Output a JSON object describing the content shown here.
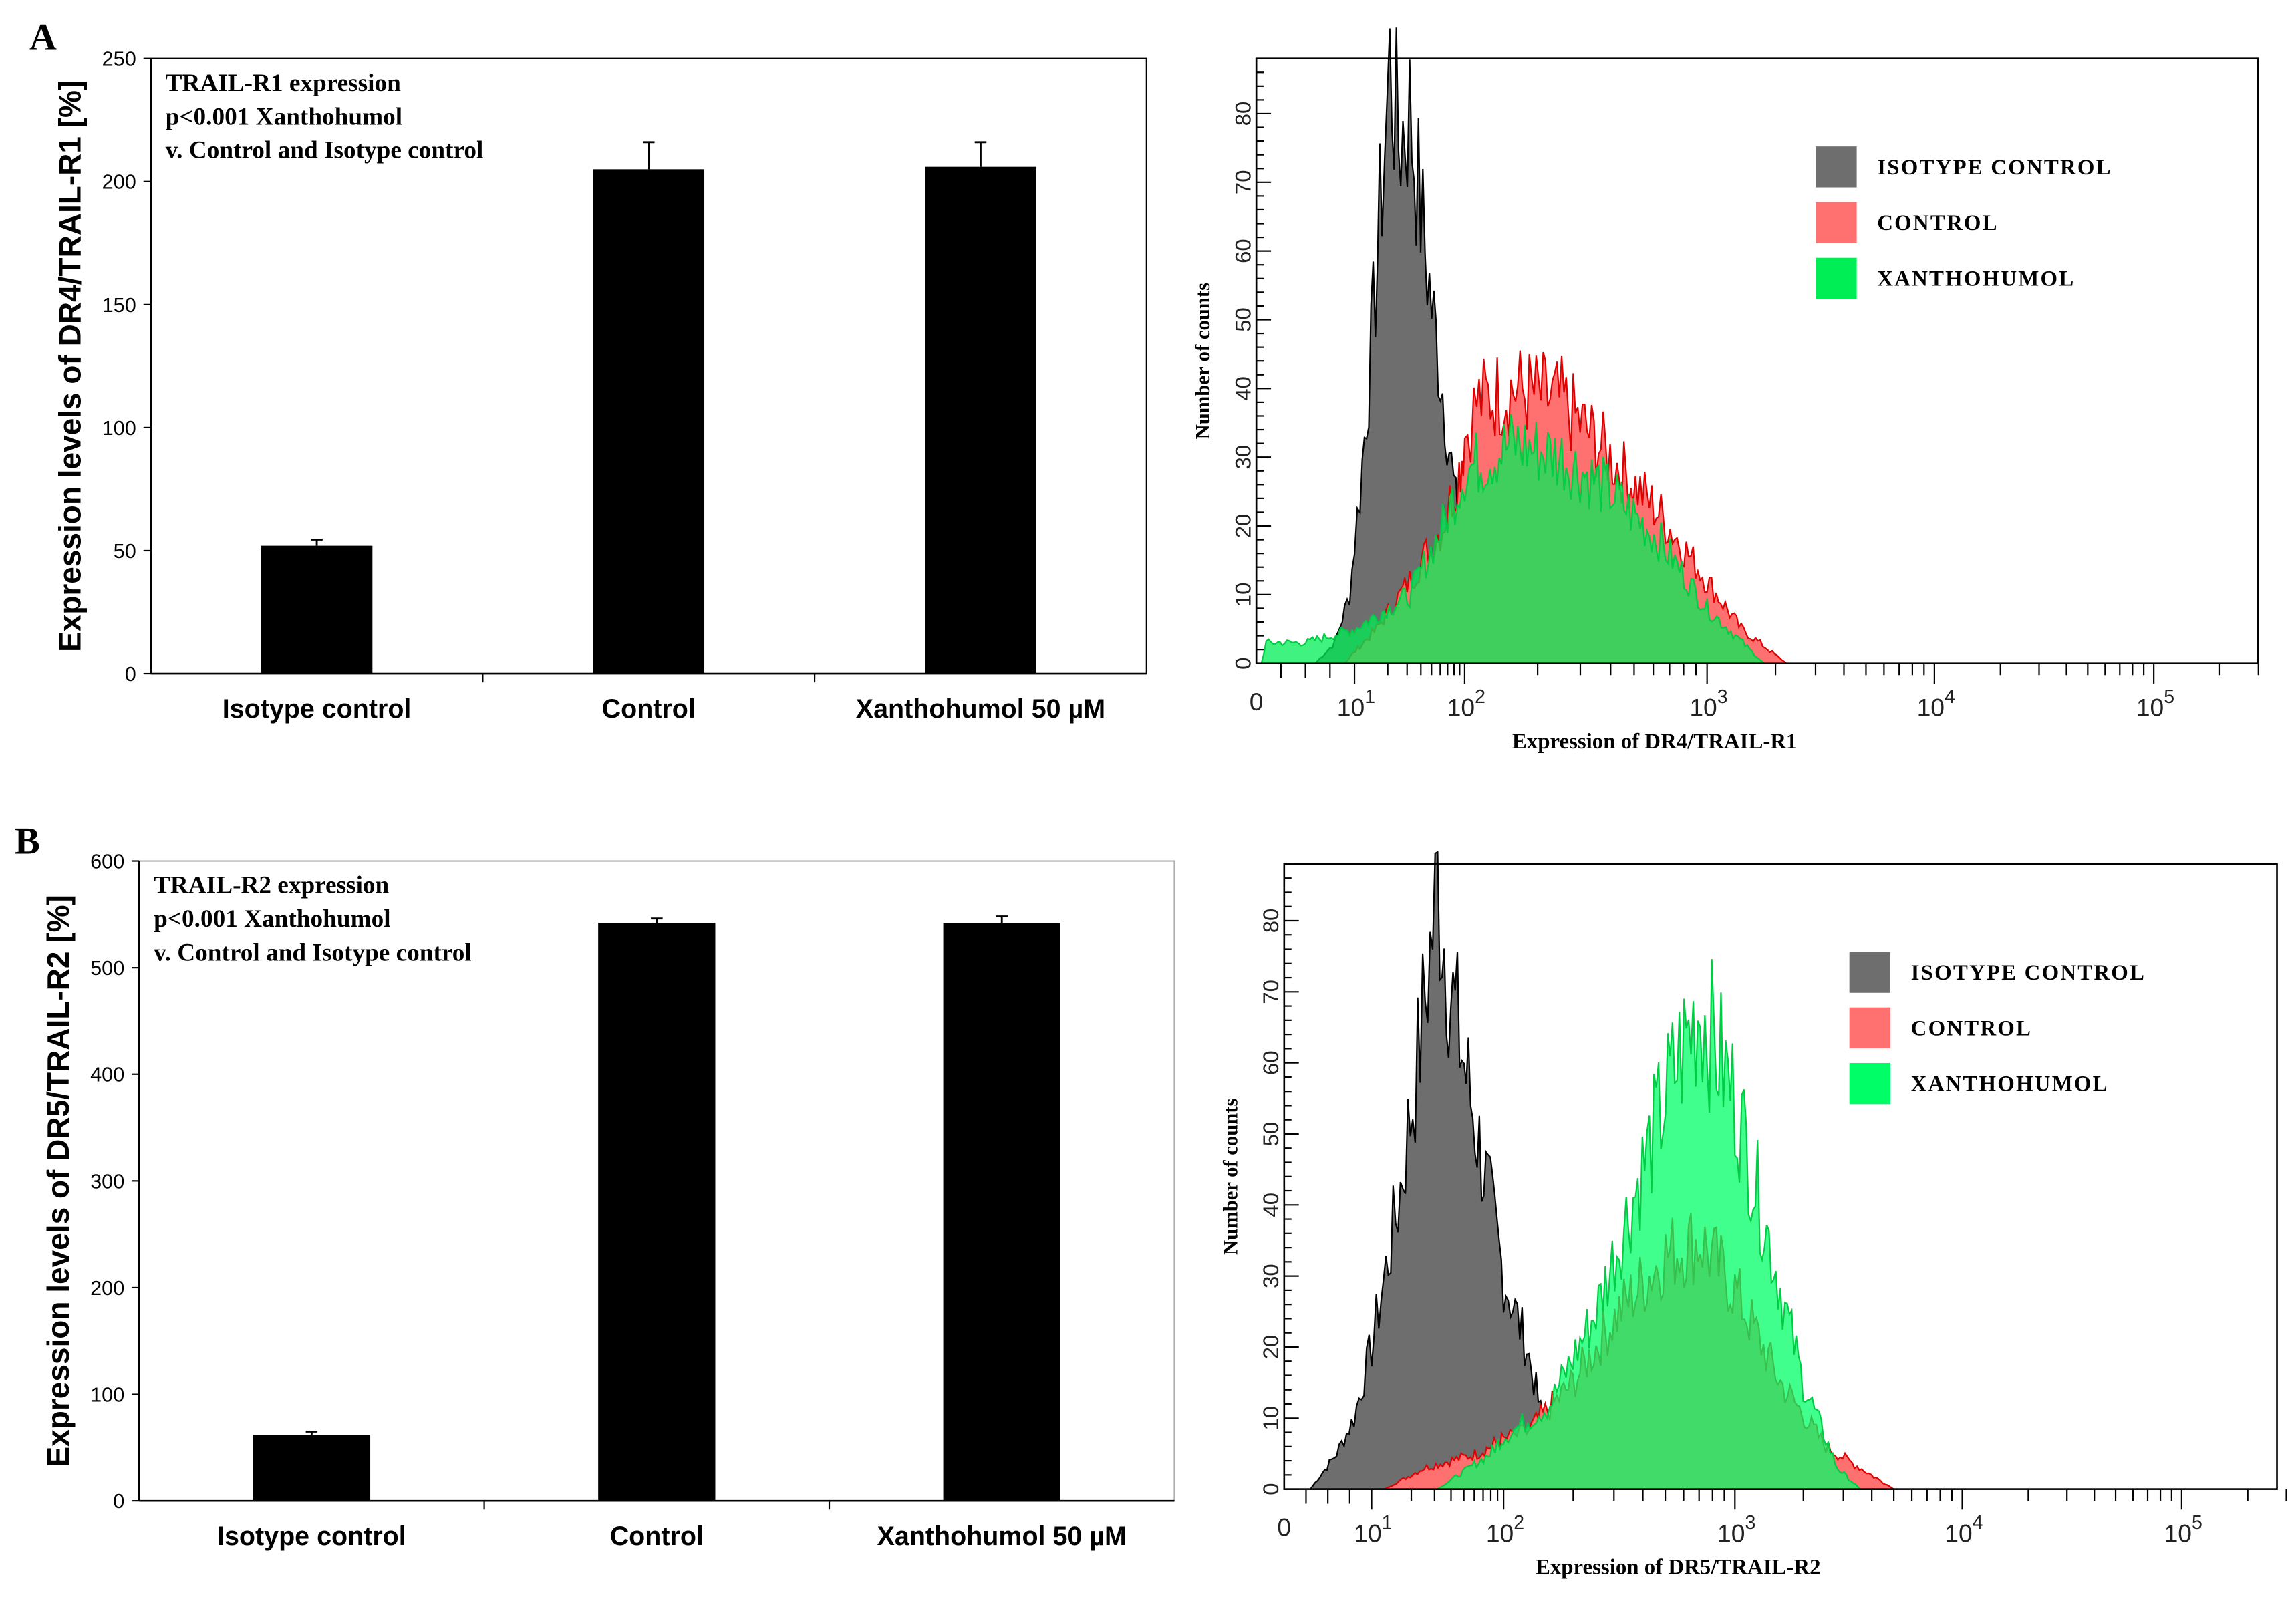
{
  "panels": {
    "a_label": "A",
    "b_label": "B"
  },
  "chart_data": [
    {
      "id": "A-bar",
      "type": "bar",
      "title": "",
      "annotation": [
        "TRAIL-R1 expression",
        "p<0.001 Xanthohumol",
        "v. Control and Isotype control"
      ],
      "ylabel": "Expression levels of DR4/TRAIL-R1 [%]",
      "xlabel": "",
      "categories": [
        "Isotype control",
        "Control",
        "Xanthohumol 50 µM"
      ],
      "values": [
        52,
        205,
        206
      ],
      "errors": [
        2.5,
        11,
        10
      ],
      "ylim": [
        0,
        250
      ],
      "yticks": [
        0,
        50,
        100,
        150,
        200,
        250
      ],
      "bar_color": "#000000"
    },
    {
      "id": "A-hist",
      "type": "area",
      "xlabel": "Expression of DR4/TRAIL-R1",
      "ylabel": "Number of counts",
      "xscale": "log (biexponential)",
      "xticks": [
        {
          "d": 0,
          "label": "0"
        },
        {
          "d": 1,
          "base": "10",
          "exp": "1"
        },
        {
          "d": 2,
          "base": "10",
          "exp": "2"
        },
        {
          "d": 3,
          "base": "10",
          "exp": "3"
        },
        {
          "d": 4,
          "base": "10",
          "exp": "4"
        },
        {
          "d": 5,
          "base": "10",
          "exp": "5"
        }
      ],
      "yticks": [
        0,
        10,
        20,
        30,
        40,
        50,
        60,
        70,
        80
      ],
      "ylim": [
        0,
        88
      ],
      "legend_position": "top-right",
      "series": [
        {
          "name": "ISOTYPE CONTROL",
          "color": "#6e6e6e",
          "stroke": "#000000",
          "points": [
            [
              0.6,
              0
            ],
            [
              0.8,
              3
            ],
            [
              0.95,
              10
            ],
            [
              1.05,
              25
            ],
            [
              1.15,
              45
            ],
            [
              1.25,
              70
            ],
            [
              1.32,
              87
            ],
            [
              1.4,
              76
            ],
            [
              1.5,
              80
            ],
            [
              1.6,
              66
            ],
            [
              1.7,
              52
            ],
            [
              1.8,
              40
            ],
            [
              1.9,
              26
            ],
            [
              2.0,
              12
            ],
            [
              2.1,
              3
            ],
            [
              2.2,
              0
            ]
          ]
        },
        {
          "name": "CONTROL",
          "color": "#ff7070",
          "stroke": "#e00000",
          "points": [
            [
              0.9,
              0
            ],
            [
              1.2,
              5
            ],
            [
              1.5,
              12
            ],
            [
              1.8,
              20
            ],
            [
              1.95,
              28
            ],
            [
              2.05,
              38
            ],
            [
              2.2,
              40
            ],
            [
              2.4,
              38
            ],
            [
              2.6,
              30
            ],
            [
              2.8,
              22
            ],
            [
              3.0,
              12
            ],
            [
              3.15,
              5
            ],
            [
              3.35,
              0
            ]
          ]
        },
        {
          "name": "XANTHOHUMOL",
          "color": "#00ee55",
          "stroke": "#00cc44",
          "points": [
            [
              0.05,
              0
            ],
            [
              0.1,
              3
            ],
            [
              0.5,
              3
            ],
            [
              1.0,
              5
            ],
            [
              1.5,
              10
            ],
            [
              1.8,
              20
            ],
            [
              2.0,
              28
            ],
            [
              2.2,
              32
            ],
            [
              2.4,
              30
            ],
            [
              2.6,
              25
            ],
            [
              2.8,
              18
            ],
            [
              3.0,
              8
            ],
            [
              3.25,
              0
            ]
          ]
        }
      ]
    },
    {
      "id": "B-bar",
      "type": "bar",
      "title": "",
      "annotation": [
        "TRAIL-R2 expression",
        "p<0.001 Xanthohumol",
        " v. Control and Isotype control"
      ],
      "ylabel": "Expression levels of DR5/TRAIL-R2 [%]",
      "xlabel": "",
      "categories": [
        "Isotype control",
        "Control",
        "Xanthohumol 50 µM"
      ],
      "values": [
        62,
        542,
        542
      ],
      "errors": [
        3,
        4,
        6
      ],
      "ylim": [
        0,
        600
      ],
      "yticks": [
        0,
        100,
        200,
        300,
        400,
        500,
        600
      ],
      "bar_color": "#000000"
    },
    {
      "id": "B-hist",
      "type": "area",
      "xlabel": "Expression of DR5/TRAIL-R2",
      "ylabel": "Number of counts",
      "xscale": "log (biexponential)",
      "xticks": [
        {
          "d": 0,
          "label": "0"
        },
        {
          "d": 1,
          "base": "10",
          "exp": "1"
        },
        {
          "d": 2,
          "base": "10",
          "exp": "2"
        },
        {
          "d": 3,
          "base": "10",
          "exp": "3"
        },
        {
          "d": 4,
          "base": "10",
          "exp": "4"
        },
        {
          "d": 5,
          "base": "10",
          "exp": "5"
        }
      ],
      "yticks": [
        0,
        10,
        20,
        30,
        40,
        50,
        60,
        70,
        80
      ],
      "ylim": [
        0,
        88
      ],
      "legend_position": "top-right",
      "series": [
        {
          "name": "ISOTYPE CONTROL",
          "color": "#6e6e6e",
          "stroke": "#000000",
          "points": [
            [
              0.3,
              0
            ],
            [
              0.6,
              5
            ],
            [
              0.8,
              10
            ],
            [
              1.0,
              20
            ],
            [
              1.2,
              40
            ],
            [
              1.35,
              60
            ],
            [
              1.5,
              85
            ],
            [
              1.6,
              70
            ],
            [
              1.7,
              60
            ],
            [
              1.8,
              50
            ],
            [
              1.9,
              40
            ],
            [
              2.0,
              30
            ],
            [
              2.1,
              20
            ],
            [
              2.2,
              5
            ],
            [
              2.3,
              0
            ]
          ]
        },
        {
          "name": "CONTROL",
          "color": "#ff7070",
          "stroke": "#e00000",
          "points": [
            [
              1.1,
              0
            ],
            [
              1.4,
              3
            ],
            [
              1.8,
              5
            ],
            [
              2.1,
              8
            ],
            [
              2.3,
              15
            ],
            [
              2.5,
              25
            ],
            [
              2.7,
              33
            ],
            [
              2.85,
              35
            ],
            [
              3.0,
              28
            ],
            [
              3.2,
              15
            ],
            [
              3.4,
              6
            ],
            [
              3.6,
              2
            ],
            [
              3.7,
              0
            ]
          ]
        },
        {
          "name": "XANTHOHUMOL",
          "color": "#00ff66",
          "stroke": "#00cc44",
          "points": [
            [
              1.5,
              0
            ],
            [
              1.9,
              5
            ],
            [
              2.2,
              12
            ],
            [
              2.4,
              25
            ],
            [
              2.6,
              45
            ],
            [
              2.75,
              60
            ],
            [
              2.85,
              68
            ],
            [
              3.0,
              55
            ],
            [
              3.15,
              35
            ],
            [
              3.3,
              15
            ],
            [
              3.45,
              3
            ],
            [
              3.55,
              0
            ]
          ]
        }
      ]
    }
  ]
}
